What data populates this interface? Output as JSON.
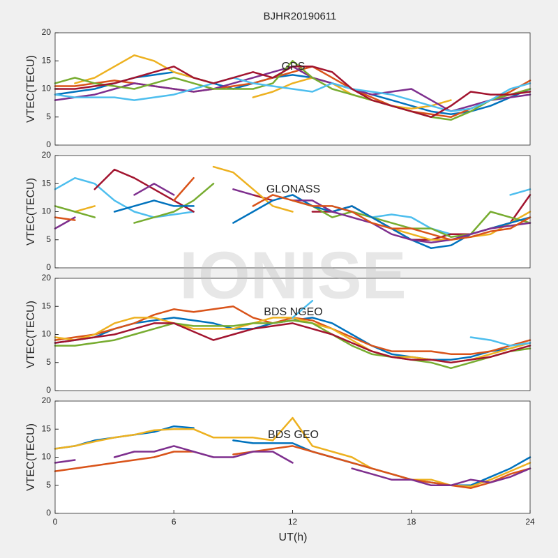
{
  "title": "BJHR20190611",
  "watermark": "IONISE",
  "xlabel": "UT(h)",
  "chart_data": [
    {
      "type": "line",
      "title": "GPS",
      "ylabel": "VTEC(TECU)",
      "x": [
        0,
        1,
        2,
        3,
        4,
        5,
        6,
        7,
        8,
        9,
        10,
        11,
        12,
        13,
        14,
        15,
        16,
        17,
        18,
        19,
        20,
        21,
        22,
        23,
        24
      ],
      "xlim": [
        0,
        24
      ],
      "ylim": [
        0,
        20
      ],
      "yticks": [
        0,
        5,
        10,
        15,
        20
      ],
      "series": [
        {
          "color": "#0072BD",
          "values": [
            9,
            9.5,
            10,
            11,
            12,
            12.5,
            13,
            12,
            11,
            10,
            11,
            12,
            12.5,
            12,
            11,
            10,
            9,
            8,
            7,
            6,
            5.5,
            6,
            7,
            8.5,
            10
          ]
        },
        {
          "color": "#D95319",
          "values": [
            10.5,
            10.5,
            11,
            11.5,
            11,
            10.5,
            10,
            9.5,
            10,
            10.5,
            11,
            12,
            13,
            14,
            12,
            10,
            8.5,
            7,
            6,
            5.5,
            5,
            6.5,
            8,
            9.5,
            11.5
          ]
        },
        {
          "color": "#EDB120",
          "values": [
            null,
            11,
            12,
            14,
            16,
            15,
            13,
            12,
            11,
            null,
            8.5,
            9.5,
            11,
            12,
            11,
            9,
            8,
            7,
            6.5,
            7,
            8,
            null,
            null,
            null,
            null
          ]
        },
        {
          "color": "#7E2F8E",
          "values": [
            8,
            8.5,
            9,
            10,
            11,
            10.5,
            10,
            9.5,
            10,
            11,
            12,
            13,
            14,
            12,
            11,
            10,
            9,
            9.5,
            10,
            8,
            6,
            7,
            8,
            8.5,
            9
          ]
        },
        {
          "color": "#77AC30",
          "values": [
            11,
            12,
            11,
            10.5,
            10,
            11,
            12,
            11,
            10,
            10,
            10,
            11,
            15,
            12,
            10,
            9,
            8,
            7,
            6,
            5,
            4.5,
            6,
            8,
            9,
            10
          ]
        },
        {
          "color": "#4DBEEE",
          "values": [
            9,
            8.5,
            8.5,
            8.5,
            8,
            8.5,
            9,
            10,
            11,
            12,
            11,
            10.5,
            10,
            9.5,
            11,
            10,
            9.5,
            9,
            8,
            7,
            6,
            6.5,
            8,
            10,
            11
          ]
        },
        {
          "color": "#A2142F",
          "values": [
            10,
            10,
            10.5,
            11,
            12,
            13,
            14,
            12,
            11,
            12,
            13,
            12,
            14,
            14,
            13,
            10,
            8,
            7,
            6,
            5,
            7,
            9.5,
            9,
            9,
            9.5
          ]
        }
      ]
    },
    {
      "type": "line",
      "title": "GLONASS",
      "ylabel": "VTEC(TECU)",
      "x": [
        0,
        1,
        2,
        3,
        4,
        5,
        6,
        7,
        8,
        9,
        10,
        11,
        12,
        13,
        14,
        15,
        16,
        17,
        18,
        19,
        20,
        21,
        22,
        23,
        24
      ],
      "xlim": [
        0,
        24
      ],
      "ylim": [
        0,
        20
      ],
      "yticks": [
        0,
        5,
        10,
        15,
        20
      ],
      "series": [
        {
          "color": "#4DBEEE",
          "values": [
            14,
            16,
            15,
            12,
            10,
            9,
            9.5,
            10,
            null,
            null,
            null,
            null,
            null,
            null,
            11,
            10,
            9,
            9.5,
            9,
            7,
            6,
            null,
            null,
            13,
            14
          ]
        },
        {
          "color": "#A2142F",
          "values": [
            null,
            null,
            14,
            17.5,
            16,
            14,
            12,
            10,
            null,
            null,
            13,
            12,
            null,
            10,
            10,
            11,
            9,
            7,
            5,
            5,
            6,
            6,
            7,
            8,
            13
          ]
        },
        {
          "color": "#EDB120",
          "values": [
            null,
            10,
            11,
            null,
            null,
            null,
            null,
            null,
            18,
            17,
            14,
            11,
            10,
            null,
            null,
            null,
            8,
            7,
            6,
            5,
            5,
            5.5,
            6,
            8,
            10
          ]
        },
        {
          "color": "#77AC30",
          "values": [
            11,
            10,
            9,
            null,
            8,
            9,
            10,
            12,
            15,
            null,
            null,
            null,
            12,
            11,
            9,
            10,
            9,
            8,
            7,
            7,
            5.5,
            6,
            10,
            9,
            8
          ]
        },
        {
          "color": "#0072BD",
          "values": [
            null,
            null,
            null,
            10,
            11,
            12,
            11,
            11,
            null,
            8,
            10,
            12,
            13,
            11,
            10,
            11,
            9,
            7,
            5,
            3.5,
            4,
            6,
            7,
            8,
            9
          ]
        },
        {
          "color": "#7E2F8E",
          "values": [
            7,
            9,
            null,
            null,
            13,
            15,
            13,
            null,
            null,
            14,
            13,
            null,
            12,
            12,
            10,
            9,
            8,
            6,
            5,
            4.5,
            5,
            6,
            7,
            7.5,
            8
          ]
        },
        {
          "color": "#D95319",
          "values": [
            9,
            8.5,
            null,
            null,
            null,
            null,
            12,
            16,
            null,
            null,
            11,
            13,
            12,
            11,
            11,
            10,
            8,
            7,
            7,
            6,
            5,
            5.5,
            6.5,
            7,
            9
          ]
        }
      ]
    },
    {
      "type": "line",
      "title": "BDS NGEO",
      "ylabel": "VTEC(TECU)",
      "x": [
        0,
        1,
        2,
        3,
        4,
        5,
        6,
        7,
        8,
        9,
        10,
        11,
        12,
        13,
        14,
        15,
        16,
        17,
        18,
        19,
        20,
        21,
        22,
        23,
        24
      ],
      "xlim": [
        0,
        24
      ],
      "ylim": [
        0,
        20
      ],
      "yticks": [
        0,
        5,
        10,
        15,
        20
      ],
      "series": [
        {
          "color": "#0072BD",
          "values": [
            8.5,
            9,
            9.5,
            11,
            12,
            12.5,
            13,
            12.5,
            12,
            11,
            11,
            12,
            12.5,
            13,
            12,
            10,
            8,
            6.5,
            6,
            5.5,
            5.5,
            6,
            7,
            7.5,
            8.5
          ]
        },
        {
          "color": "#D95319",
          "values": [
            9,
            9.5,
            10,
            11,
            12,
            13.5,
            14.5,
            14,
            14.5,
            15,
            13,
            12,
            13,
            12.5,
            11,
            9.5,
            8,
            7,
            7,
            7,
            6.5,
            6.5,
            7,
            8,
            9
          ]
        },
        {
          "color": "#EDB120",
          "values": [
            9.5,
            9,
            10,
            12,
            13,
            13,
            12,
            11,
            11,
            11,
            12,
            13,
            13,
            12,
            11,
            9,
            7,
            6,
            6,
            5.5,
            5,
            5.5,
            6.5,
            7.5,
            8.5
          ]
        },
        {
          "color": "#77AC30",
          "values": [
            8,
            8,
            8.5,
            9,
            10,
            11,
            12,
            11.5,
            11.5,
            11.5,
            12,
            12,
            12.5,
            12,
            10,
            8,
            6.5,
            6,
            5.5,
            5,
            4,
            5,
            6,
            7,
            7.5
          ]
        },
        {
          "color": "#A2142F",
          "values": [
            8.5,
            9,
            9.5,
            10,
            11,
            12,
            12,
            10.5,
            9,
            10,
            11,
            11.5,
            12,
            11,
            10,
            8.5,
            7,
            6,
            5.5,
            5.5,
            5,
            5.5,
            6,
            7,
            8
          ]
        },
        {
          "color": "#4DBEEE",
          "values": [
            null,
            null,
            null,
            null,
            null,
            null,
            null,
            null,
            null,
            null,
            null,
            null,
            13,
            16,
            null,
            null,
            null,
            null,
            null,
            null,
            null,
            9.5,
            9,
            8,
            8.5
          ]
        }
      ]
    },
    {
      "type": "line",
      "title": "BDS GEO",
      "ylabel": "VTEC(TECU)",
      "x": [
        0,
        1,
        2,
        3,
        4,
        5,
        6,
        7,
        8,
        9,
        10,
        11,
        12,
        13,
        14,
        15,
        16,
        17,
        18,
        19,
        20,
        21,
        22,
        23,
        24
      ],
      "xlim": [
        0,
        24
      ],
      "ylim": [
        0,
        20
      ],
      "yticks": [
        {
          "value": 0,
          "label": "0"
        },
        5,
        10,
        15,
        20
      ],
      "xticks": [
        0,
        6,
        12,
        18,
        24
      ],
      "series": [
        {
          "color": "#0072BD",
          "values": [
            11.5,
            12,
            13,
            13.5,
            14,
            14.5,
            15.5,
            15.2,
            null,
            13,
            12.5,
            12.5,
            12.5,
            11,
            10,
            9,
            8,
            7,
            6,
            5.5,
            5,
            5,
            6.5,
            8,
            10
          ]
        },
        {
          "color": "#EDB120",
          "values": [
            11.5,
            12,
            12.8,
            13.5,
            14,
            14.8,
            15,
            15,
            13.5,
            13.5,
            13.5,
            13,
            17,
            12,
            11,
            10,
            8,
            7,
            6,
            6,
            5,
            4.8,
            6,
            7.5,
            9
          ]
        },
        {
          "color": "#D95319",
          "values": [
            7.5,
            8,
            8.5,
            9,
            9.5,
            10,
            11,
            11,
            null,
            10.5,
            11,
            11.5,
            12,
            11,
            10,
            9,
            8,
            7,
            6,
            5.5,
            5,
            4.5,
            5.5,
            7,
            8
          ]
        },
        {
          "color": "#7E2F8E",
          "values": [
            9,
            9.5,
            null,
            10,
            11,
            11,
            12,
            11,
            10,
            10,
            11,
            11,
            9,
            null,
            null,
            8,
            7,
            6,
            6,
            5,
            5,
            6,
            5.5,
            6.5,
            8
          ]
        }
      ]
    }
  ]
}
